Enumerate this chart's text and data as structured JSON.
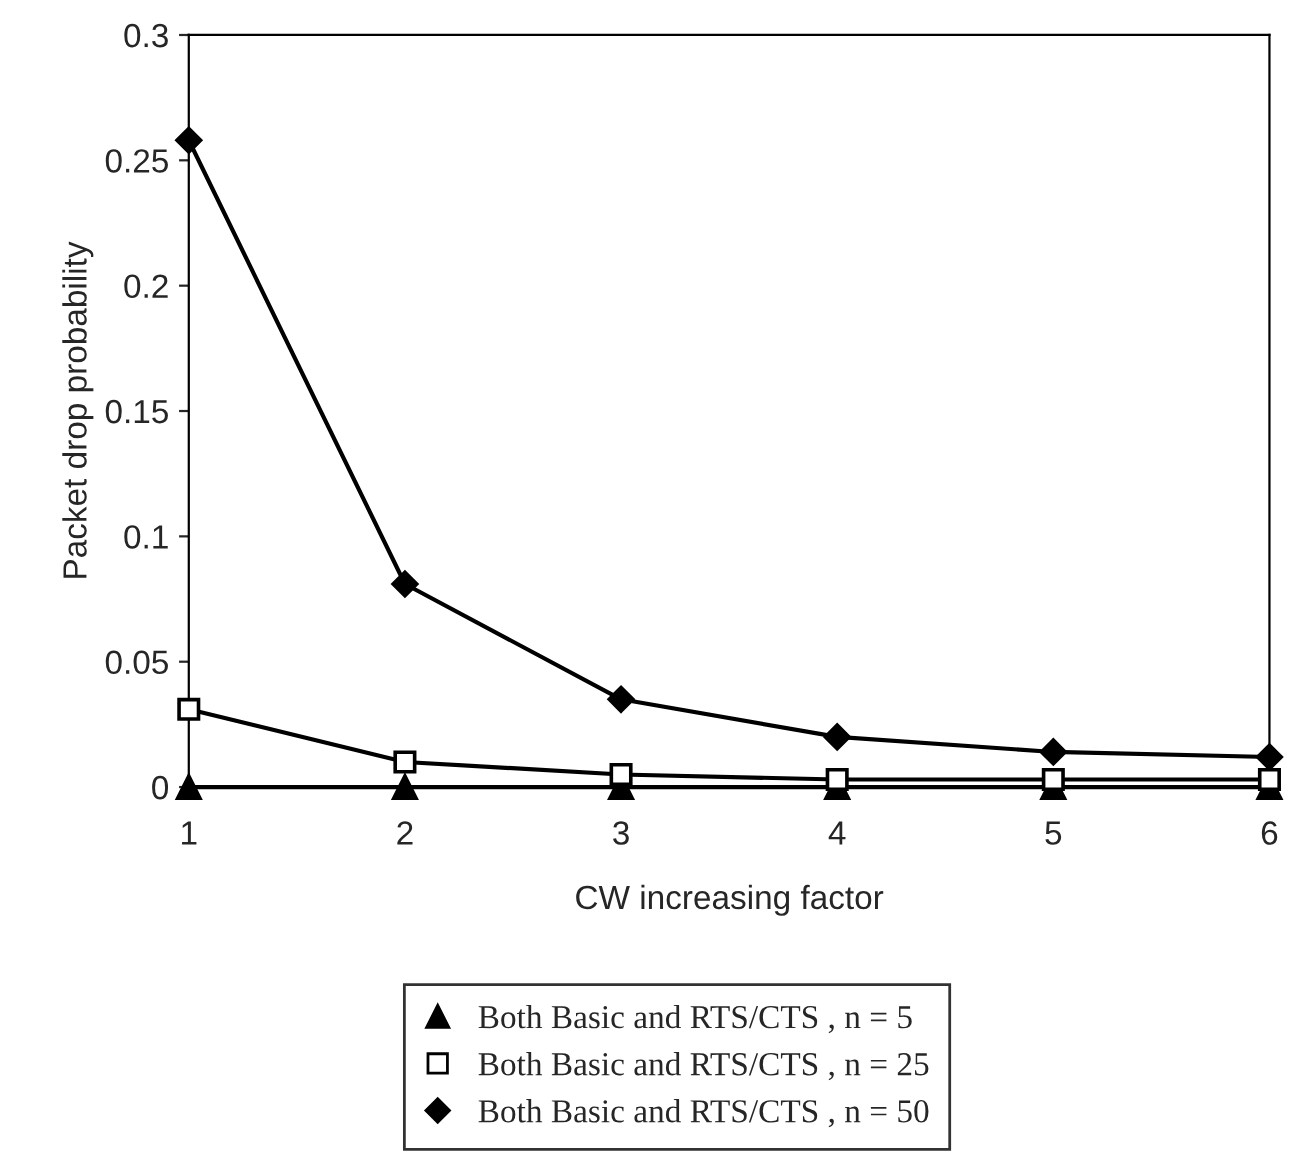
{
  "chart_data": {
    "type": "line",
    "xlabel": "CW increasing factor",
    "ylabel": "Packet drop probability",
    "x": [
      1,
      2,
      3,
      4,
      5,
      6
    ],
    "xlim": [
      1,
      6
    ],
    "xticks": [
      1,
      2,
      3,
      4,
      5,
      6
    ],
    "ylim": [
      0,
      0.3
    ],
    "yticks": [
      0,
      0.05,
      0.1,
      0.15,
      0.2,
      0.25,
      0.3
    ],
    "grid": false,
    "legend": "bottom",
    "line_style": "solid",
    "series": [
      {
        "name": "Both Basic and RTS/CTS , n = 5",
        "color": "#000000",
        "marker": "triangle",
        "values": [
          0,
          0,
          0,
          0,
          0,
          0
        ]
      },
      {
        "name": "Both Basic and RTS/CTS , n = 25",
        "color": "#000000",
        "marker": "square",
        "values": [
          0.031,
          0.01,
          0.005,
          0.003,
          0.003,
          0.003
        ]
      },
      {
        "name": "Both Basic and RTS/CTS , n = 50",
        "color": "#000000",
        "marker": "diamond",
        "values": [
          0.258,
          0.081,
          0.035,
          0.02,
          0.014,
          0.012
        ]
      }
    ]
  }
}
